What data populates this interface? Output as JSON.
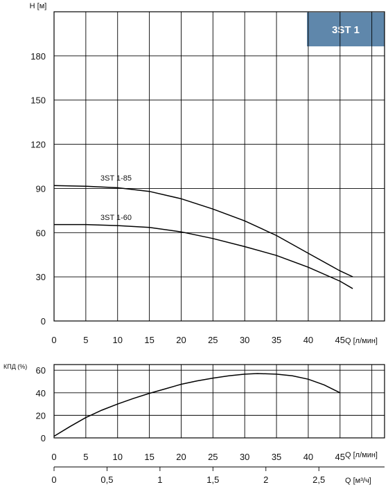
{
  "badge": {
    "text": "3ST 1",
    "color": "#5f87ab"
  },
  "chart_data": [
    {
      "type": "line",
      "ylabel": "H [м]",
      "xlabel": "Q [л/мин]",
      "xlim": [
        0,
        52
      ],
      "ylim": [
        0,
        210
      ],
      "x_ticks": [
        0,
        5,
        10,
        15,
        20,
        25,
        30,
        35,
        40,
        45
      ],
      "y_ticks": [
        0,
        30,
        60,
        90,
        120,
        150,
        180
      ],
      "grid": true,
      "series": [
        {
          "name": "3ST 1-85",
          "x": [
            0,
            5,
            10,
            15,
            20,
            25,
            30,
            35,
            40,
            45,
            47
          ],
          "y": [
            92,
            91.5,
            90.5,
            88,
            83,
            76,
            68,
            58,
            46,
            34,
            30
          ]
        },
        {
          "name": "3ST 1-60",
          "x": [
            0,
            5,
            10,
            15,
            20,
            25,
            30,
            35,
            40,
            45,
            47
          ],
          "y": [
            65.5,
            65.5,
            64.8,
            63.5,
            60.5,
            56,
            50.5,
            44.5,
            36.5,
            27,
            22
          ]
        }
      ]
    },
    {
      "type": "line",
      "ylabel": "КПД (%)",
      "xlabel": "Q [л/мин]",
      "xlim": [
        0,
        52
      ],
      "ylim": [
        0,
        65
      ],
      "x_ticks": [
        0,
        5,
        10,
        15,
        20,
        25,
        30,
        35,
        40,
        45
      ],
      "y_ticks": [
        0,
        20,
        40,
        60
      ],
      "grid": true,
      "series": [
        {
          "name": "",
          "x": [
            0,
            2.5,
            5,
            7.5,
            10,
            12.5,
            15,
            17.5,
            20,
            22.5,
            25,
            27.5,
            30,
            32,
            35,
            37.5,
            40,
            42.5,
            45
          ],
          "y": [
            1.5,
            10,
            18,
            24.5,
            30,
            35,
            39.5,
            43.5,
            47.5,
            50.5,
            53,
            55,
            56.5,
            57,
            56.5,
            55,
            52,
            47,
            40
          ]
        }
      ]
    },
    {
      "type": "axis",
      "xlabel": "Q [м³/ч]",
      "xlim": [
        0,
        3.12
      ],
      "x_ticks": [
        "0",
        "0,5",
        "1",
        "1,5",
        "2",
        "2,5"
      ],
      "x_tick_values": [
        0,
        0.5,
        1,
        1.5,
        2,
        2.5
      ]
    }
  ]
}
